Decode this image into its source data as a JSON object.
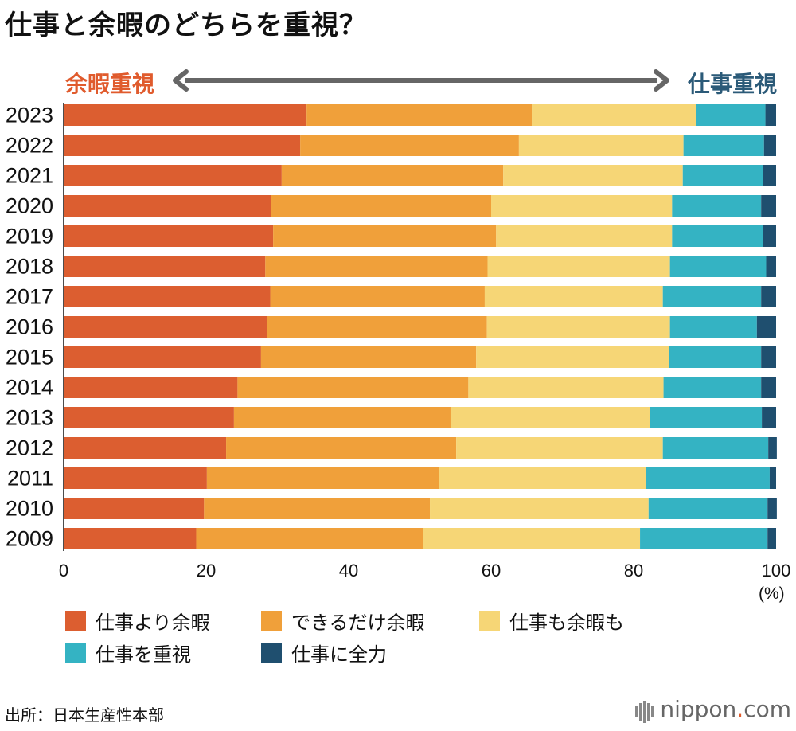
{
  "title": "仕事と余暇のどちらを重視？",
  "direction": {
    "left_label": "余暇重視",
    "right_label": "仕事重視",
    "left_color": "#e05b2d",
    "right_color": "#2b5a78",
    "arrow_color": "#666666"
  },
  "unit_label": "(%)",
  "source": "出所：日本生産性本部",
  "logo": {
    "name": "nippon",
    "dot": ".",
    "suffix": "com"
  },
  "chart_data": {
    "type": "bar",
    "orientation": "horizontal",
    "stacked": true,
    "categories": [
      "2023",
      "2022",
      "2021",
      "2020",
      "2019",
      "2018",
      "2017",
      "2016",
      "2015",
      "2014",
      "2013",
      "2012",
      "2011",
      "2010",
      "2009"
    ],
    "xlim": [
      0,
      100
    ],
    "xticks": [
      0,
      20,
      40,
      60,
      80,
      100
    ],
    "series": [
      {
        "name": "仕事より余暇",
        "color": "#dc5e30",
        "values": [
          34.1,
          33.2,
          30.6,
          29.1,
          29.4,
          28.3,
          29.0,
          28.6,
          27.7,
          24.4,
          23.9,
          22.8,
          20.1,
          19.7,
          18.6
        ]
      },
      {
        "name": "できるだけ余暇",
        "color": "#f0a03a",
        "values": [
          31.6,
          30.7,
          31.1,
          30.9,
          31.3,
          31.2,
          30.1,
          30.8,
          30.2,
          32.4,
          30.4,
          32.3,
          32.6,
          31.7,
          31.9
        ]
      },
      {
        "name": "仕事も余暇も",
        "color": "#f6d676",
        "values": [
          23.1,
          23.1,
          25.2,
          25.4,
          24.7,
          25.6,
          25.0,
          25.7,
          27.1,
          27.4,
          28.0,
          29.0,
          29.0,
          30.7,
          30.4
        ]
      },
      {
        "name": "仕事を重視",
        "color": "#34b3c3",
        "values": [
          9.7,
          11.3,
          11.3,
          12.5,
          12.8,
          13.5,
          13.8,
          12.2,
          12.9,
          13.7,
          15.7,
          14.8,
          17.4,
          16.7,
          17.9
        ]
      },
      {
        "name": "仕事に全力",
        "color": "#1f4f6f",
        "values": [
          1.5,
          1.7,
          1.8,
          2.1,
          1.8,
          1.4,
          2.1,
          2.7,
          2.1,
          2.1,
          2.0,
          1.2,
          0.9,
          1.3,
          1.2
        ]
      }
    ],
    "legend": {
      "position": "bottom"
    }
  }
}
